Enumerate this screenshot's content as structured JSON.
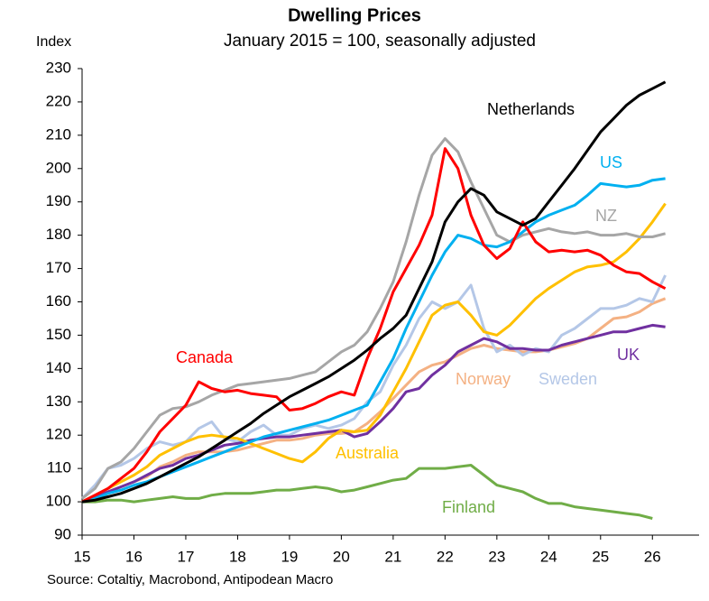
{
  "chart_data": {
    "type": "line",
    "title": "Dwelling Prices",
    "subtitle": "January 2015 = 100, seasonally adjusted",
    "y_label": "Index",
    "source": "Source: Cotaltiy, Macrobond, Antipodean Macro",
    "xlim": [
      15,
      26.9
    ],
    "ylim": [
      90,
      230
    ],
    "xticks": [
      15,
      16,
      17,
      18,
      19,
      20,
      21,
      22,
      23,
      24,
      25,
      26
    ],
    "yticks": [
      90,
      100,
      110,
      120,
      130,
      140,
      150,
      160,
      170,
      180,
      190,
      200,
      210,
      220,
      230
    ],
    "x": [
      15,
      15.25,
      15.5,
      15.75,
      16,
      16.25,
      16.5,
      16.75,
      17,
      17.25,
      17.5,
      17.75,
      18,
      18.25,
      18.5,
      18.75,
      19,
      19.25,
      19.5,
      19.75,
      20,
      20.25,
      20.5,
      20.75,
      21,
      21.25,
      21.5,
      21.75,
      22,
      22.25,
      22.5,
      22.75,
      23,
      23.25,
      23.5,
      23.75,
      24,
      24.25,
      24.5,
      24.75,
      25,
      25.25,
      25.5,
      25.75,
      26,
      26.25
    ],
    "series": [
      {
        "name": "Finland",
        "color": "#70ad47",
        "values": [
          100,
          100,
          100.5,
          100.5,
          100,
          100.5,
          101,
          101.5,
          101,
          101,
          102,
          102.5,
          102.5,
          102.5,
          103,
          103.5,
          103.5,
          104,
          104.5,
          104,
          103,
          103.5,
          104.5,
          105.5,
          106.5,
          107,
          110,
          110,
          110,
          110.5,
          111,
          108,
          105,
          104,
          103,
          101,
          99.5,
          99.5,
          98.5,
          98,
          97.5,
          97,
          96.5,
          96,
          95,
          null
        ]
      },
      {
        "name": "Norway",
        "color": "#f4b183",
        "values": [
          100,
          101.5,
          103,
          104.5,
          106,
          107.5,
          110.5,
          112,
          114,
          115,
          115,
          115,
          115.5,
          116.5,
          117.5,
          118.5,
          118.5,
          119,
          120,
          120.5,
          120.5,
          121,
          123.5,
          127,
          131,
          135,
          139,
          141,
          142,
          144,
          146,
          147,
          146,
          145.5,
          145,
          145,
          145.5,
          146.5,
          147.5,
          149,
          152,
          155,
          155.5,
          157,
          159.5,
          161
        ]
      },
      {
        "name": "Sweden",
        "color": "#b4c7e7",
        "values": [
          101,
          105,
          110,
          111,
          113,
          116,
          118,
          117,
          118,
          122,
          124,
          119,
          118,
          121,
          123,
          120,
          120,
          122,
          123,
          122,
          123,
          125,
          130,
          133,
          141,
          147,
          155,
          160,
          158,
          160,
          165,
          152,
          145,
          147,
          144,
          146,
          145,
          150,
          152,
          155,
          158,
          158,
          159,
          161,
          160,
          168
        ]
      },
      {
        "name": "UK",
        "color": "#7030a0",
        "values": [
          100,
          101.5,
          103,
          104.5,
          106,
          108,
          110,
          111,
          113,
          114,
          115.5,
          117,
          117.5,
          118.5,
          119,
          119.5,
          119.5,
          120,
          120.5,
          121,
          121.5,
          119.5,
          120.5,
          124,
          128,
          133,
          134,
          138,
          141,
          145,
          147,
          149,
          148,
          146,
          146,
          145.5,
          145.5,
          147,
          148,
          149,
          150,
          151,
          151,
          152,
          153,
          152.5
        ]
      },
      {
        "name": "Australia",
        "color": "#ffc000",
        "values": [
          100,
          102,
          104,
          106,
          108,
          110.5,
          114,
          116,
          118,
          119.5,
          120,
          119.5,
          119,
          117.5,
          116,
          114.5,
          113,
          112,
          115,
          119,
          121.5,
          121,
          121.5,
          126,
          133,
          140,
          148,
          156,
          159,
          160,
          156,
          151,
          150,
          153,
          157,
          161,
          164,
          166.5,
          169,
          170.5,
          171,
          172,
          175,
          179,
          184,
          189.5
        ]
      },
      {
        "name": "NZ",
        "color": "#a6a6a6",
        "values": [
          101,
          104,
          110,
          112,
          116,
          121,
          126,
          128,
          128.5,
          130,
          132,
          133.5,
          135,
          135.5,
          136,
          136.5,
          137,
          138,
          139,
          142,
          145,
          147,
          151,
          158,
          166,
          178,
          192,
          204,
          209,
          205,
          196,
          188,
          180,
          178,
          180,
          181,
          182,
          181,
          180.5,
          181,
          180,
          180,
          180.5,
          179.5,
          179.5,
          180.5
        ]
      },
      {
        "name": "US",
        "color": "#00b0f0",
        "values": [
          100,
          101,
          102.5,
          103.5,
          105,
          106,
          107.5,
          109,
          110.5,
          112,
          113.5,
          115,
          116.5,
          118,
          119.5,
          120.5,
          121.5,
          122.5,
          123.5,
          124.5,
          126,
          127.5,
          129,
          136,
          143,
          152,
          160,
          168,
          175,
          180,
          179,
          177,
          176.5,
          178,
          181,
          184,
          186,
          187.5,
          189,
          192,
          195.5,
          195,
          194.5,
          195,
          196.5,
          197
        ]
      },
      {
        "name": "Canada",
        "color": "#ff0000",
        "values": [
          100,
          102,
          104,
          107,
          110,
          115,
          121,
          125,
          129,
          136,
          134,
          133,
          133.5,
          132.5,
          132,
          131.5,
          127.5,
          128,
          129.5,
          131.5,
          133,
          132,
          143,
          152,
          163,
          170,
          177,
          186,
          206,
          200,
          186,
          177,
          173,
          176,
          184,
          178,
          175,
          175.5,
          175,
          175.5,
          174,
          171,
          169,
          168.5,
          166,
          164
        ]
      },
      {
        "name": "Netherlands",
        "color": "#000000",
        "values": [
          100,
          100.5,
          101.5,
          102.5,
          104,
          105.5,
          107.5,
          109.5,
          111.5,
          113.5,
          116,
          118.5,
          121,
          123.5,
          126.5,
          129,
          131.5,
          133.5,
          135.5,
          137.5,
          140,
          142.5,
          145.5,
          149,
          152,
          156,
          164,
          172,
          184,
          190,
          194,
          192,
          187,
          185,
          183,
          185,
          190,
          195,
          200,
          205.5,
          211,
          215,
          219,
          222,
          224,
          226
        ]
      }
    ]
  }
}
